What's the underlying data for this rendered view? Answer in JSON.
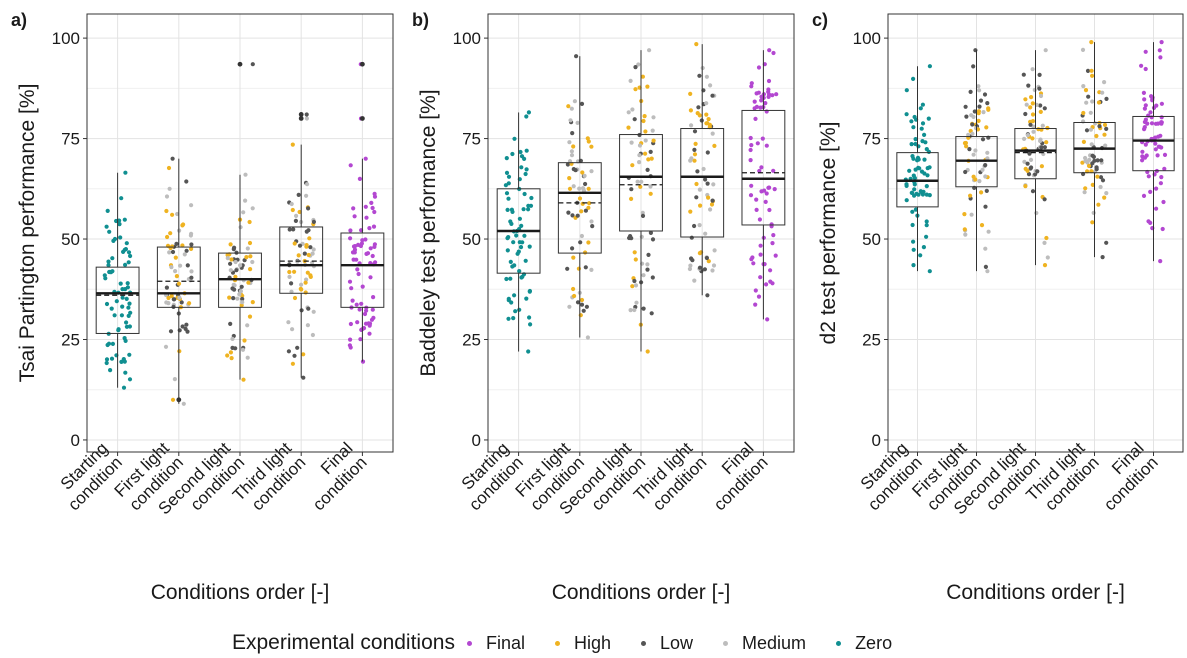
{
  "legend": {
    "title": "Experimental conditions",
    "items": [
      {
        "label": "Final",
        "color": "#b347d1"
      },
      {
        "label": "High",
        "color": "#efb321"
      },
      {
        "label": "Low",
        "color": "#555555"
      },
      {
        "label": "Medium",
        "color": "#bdbdbd"
      },
      {
        "label": "Zero",
        "color": "#108f91"
      }
    ]
  },
  "chart_data": [
    {
      "type": "box",
      "panel": "a)",
      "ylabel": "Tsai Partington performance [%]",
      "xlabel": "Conditions order [-]",
      "ylim": [
        -3,
        106
      ],
      "yticks": [
        0,
        25,
        50,
        75,
        100
      ],
      "grid": true,
      "categories": [
        [
          "Starting",
          "condition"
        ],
        [
          "First light",
          "condition"
        ],
        [
          "Second light",
          "condition"
        ],
        [
          "Third light",
          "condition"
        ],
        [
          "Final",
          "condition"
        ]
      ],
      "boxes": [
        {
          "min": 13,
          "q1": 26.5,
          "median": 36.5,
          "mean": 36,
          "q3": 43,
          "max": 66.5
        },
        {
          "min": 9,
          "q1": 33,
          "median": 36.5,
          "mean": 39.5,
          "q3": 48,
          "max": 70
        },
        {
          "min": 15,
          "q1": 33,
          "median": 40,
          "mean": 40,
          "q3": 46.5,
          "max": 66
        },
        {
          "min": 15.5,
          "q1": 36.5,
          "median": 43.5,
          "mean": 44.5,
          "q3": 53,
          "max": 73.5
        },
        {
          "min": 19.5,
          "q1": 33,
          "median": 43.5,
          "mean": 43.5,
          "q3": 51.5,
          "max": 70
        }
      ],
      "outliers": [
        [],
        [
          10
        ],
        [
          93.5
        ],
        [
          80,
          81
        ],
        [
          80,
          93.5
        ]
      ]
    },
    {
      "type": "box",
      "panel": "b)",
      "ylabel": "Baddeley test performance [%]",
      "xlabel": "Conditions order [-]",
      "ylim": [
        -3,
        106
      ],
      "yticks": [
        0,
        25,
        50,
        75,
        100
      ],
      "grid": true,
      "categories": [
        [
          "Starting",
          "condition"
        ],
        [
          "First light",
          "condition"
        ],
        [
          "Second light",
          "condition"
        ],
        [
          "Third light",
          "condition"
        ],
        [
          "Final",
          "condition"
        ]
      ],
      "boxes": [
        {
          "min": 22,
          "q1": 41.5,
          "median": 52,
          "mean": 52,
          "q3": 62.5,
          "max": 81.5
        },
        {
          "min": 25.5,
          "q1": 46.5,
          "median": 61.5,
          "mean": 59,
          "q3": 69,
          "max": 95.5
        },
        {
          "min": 22,
          "q1": 52,
          "median": 65.5,
          "mean": 63.5,
          "q3": 76,
          "max": 97
        },
        {
          "min": 36,
          "q1": 50.5,
          "median": 65.5,
          "mean": 65.5,
          "q3": 77.5,
          "max": 98.5
        },
        {
          "min": 30,
          "q1": 53.5,
          "median": 65,
          "mean": 66.5,
          "q3": 82,
          "max": 97
        }
      ],
      "outliers": [
        [],
        [],
        [],
        [],
        []
      ]
    },
    {
      "type": "box",
      "panel": "c)",
      "ylabel": "d2 test performance [%]",
      "xlabel": "Conditions order [-]",
      "ylim": [
        -3,
        106
      ],
      "yticks": [
        0,
        25,
        50,
        75,
        100
      ],
      "grid": true,
      "categories": [
        [
          "Starting",
          "condition"
        ],
        [
          "First light",
          "condition"
        ],
        [
          "Second light",
          "condition"
        ],
        [
          "Third light",
          "condition"
        ],
        [
          "Final",
          "condition"
        ]
      ],
      "boxes": [
        {
          "min": 42,
          "q1": 58,
          "median": 64.5,
          "mean": 64.5,
          "q3": 71.5,
          "max": 93
        },
        {
          "min": 42,
          "q1": 63,
          "median": 69.5,
          "mean": 69.5,
          "q3": 75.5,
          "max": 97
        },
        {
          "min": 43.5,
          "q1": 65,
          "median": 72,
          "mean": 71.5,
          "q3": 77.5,
          "max": 97
        },
        {
          "min": 45.5,
          "q1": 66.5,
          "median": 72.5,
          "mean": 72.5,
          "q3": 79,
          "max": 99
        },
        {
          "min": 44.5,
          "q1": 67,
          "median": 74.5,
          "mean": 74.5,
          "q3": 80.5,
          "max": 99
        }
      ],
      "outliers": [
        [],
        [],
        [],
        [],
        []
      ]
    }
  ]
}
